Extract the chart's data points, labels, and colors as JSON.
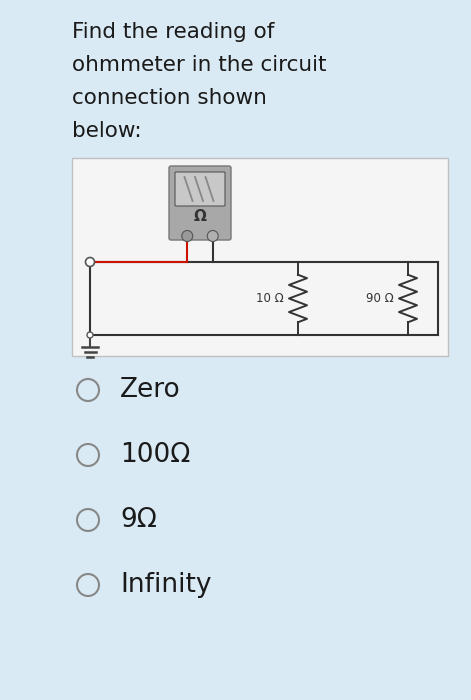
{
  "bg_color": "#daeaf4",
  "title_lines": [
    "Find the reading of",
    "ohmmeter in the circuit",
    "connection shown",
    "below:"
  ],
  "title_fontsize": 15.5,
  "title_color": "#1a1a1a",
  "circuit_bg": "#f5f5f5",
  "circuit_border": "#c0c0c0",
  "options": [
    "Zero",
    "100Ω",
    "9Ω",
    "Infinity"
  ],
  "option_fontsize": 19,
  "option_color": "#1a1a1a",
  "resistor1_label": "10 Ω",
  "resistor2_label": "90 Ω",
  "meter_label": "Ω"
}
